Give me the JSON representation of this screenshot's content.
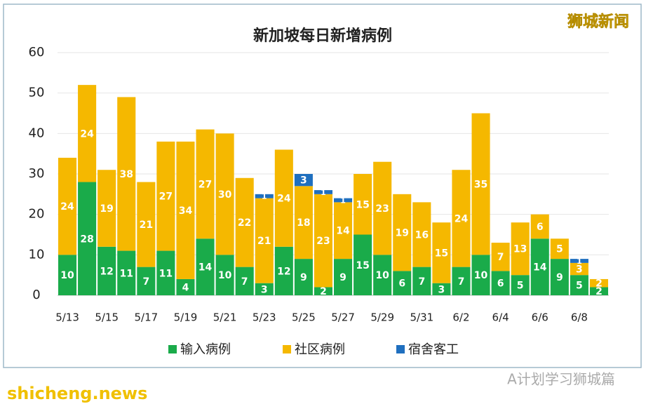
{
  "chart_data": {
    "type": "stacked_bar",
    "title": "新加坡每日新增病例",
    "categories": [
      "5/13",
      null,
      "5/15",
      null,
      "5/17",
      null,
      "5/19",
      null,
      "5/21",
      null,
      "5/23",
      null,
      "5/25",
      null,
      "5/27",
      null,
      "5/29",
      null,
      "5/31",
      null,
      "6/2",
      null,
      "6/4",
      null,
      "6/6",
      null,
      "6/8",
      null
    ],
    "series": [
      {
        "name": "输入病例",
        "color": "#1aab4a",
        "values": [
          10,
          28,
          12,
          11,
          7,
          11,
          4,
          14,
          10,
          7,
          3,
          12,
          9,
          2,
          9,
          15,
          10,
          6,
          7,
          3,
          7,
          10,
          6,
          5,
          14,
          9,
          5,
          2
        ]
      },
      {
        "name": "社区病例",
        "color": "#f5b800",
        "values": [
          24,
          24,
          19,
          38,
          21,
          27,
          34,
          27,
          30,
          22,
          21,
          24,
          18,
          23,
          14,
          15,
          23,
          19,
          16,
          15,
          24,
          35,
          7,
          13,
          6,
          5,
          3,
          2
        ]
      },
      {
        "name": "宿舍客工",
        "color": "#1f6fbf",
        "values": [
          0,
          0,
          0,
          0,
          0,
          0,
          0,
          0,
          0,
          0,
          1,
          0,
          3,
          1,
          1,
          0,
          0,
          0,
          0,
          0,
          0,
          0,
          0,
          0,
          0,
          0,
          1,
          0
        ]
      }
    ],
    "ylim": [
      0,
      60
    ],
    "yticks": [
      0,
      10,
      20,
      30,
      40,
      50,
      60
    ],
    "grid": true,
    "legend": "bottom",
    "annotations": [
      "狮城新闻",
      "shicheng.news",
      "A计划学习狮城篇"
    ]
  }
}
